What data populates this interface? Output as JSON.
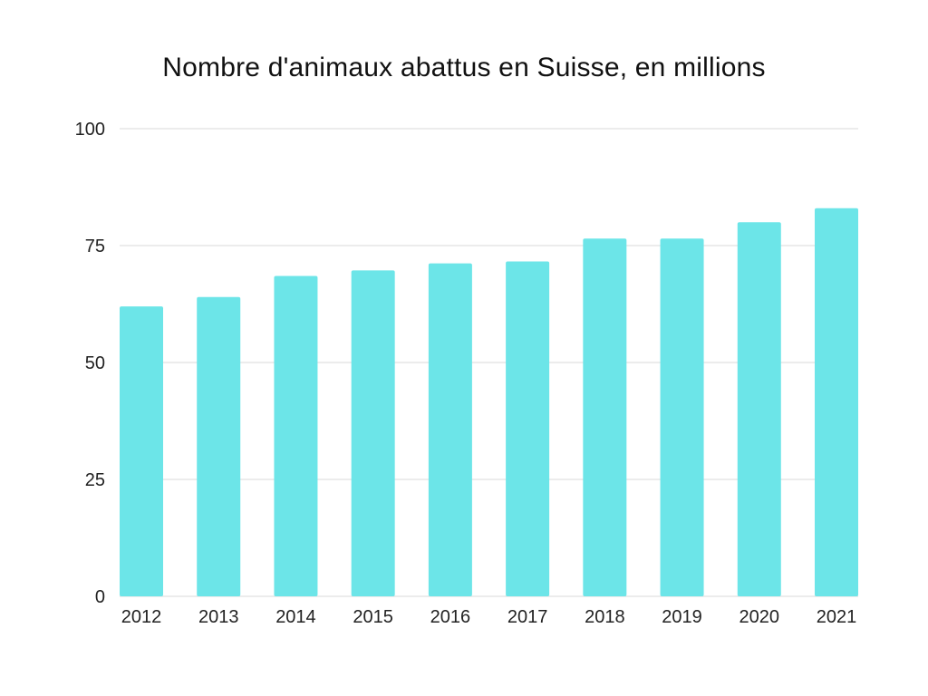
{
  "chart_data": {
    "type": "bar",
    "title": "Nombre d'animaux abattus en Suisse, en millions",
    "xlabel": "",
    "ylabel": "",
    "categories": [
      "2012",
      "2013",
      "2014",
      "2015",
      "2016",
      "2017",
      "2018",
      "2019",
      "2020",
      "2021"
    ],
    "values": [
      62.0,
      64.0,
      68.5,
      69.7,
      71.2,
      71.6,
      76.5,
      76.5,
      80.0,
      83.0
    ],
    "ylim": [
      0,
      100
    ],
    "yticks": [
      0,
      25,
      50,
      75,
      100
    ],
    "grid": true,
    "legend": "none",
    "colors": {
      "bar": "#6ce5e8",
      "grid": "#d9d9d9"
    }
  }
}
